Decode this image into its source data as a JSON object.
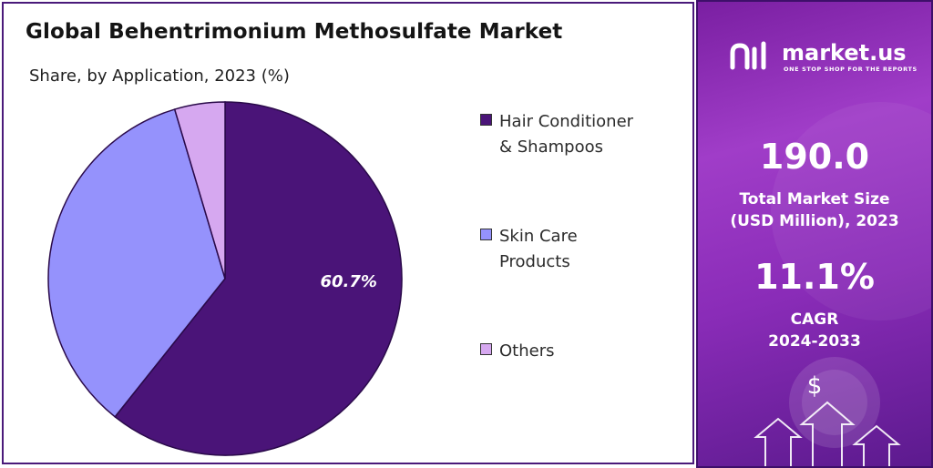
{
  "chart": {
    "title": "Global Behentrimonium Methosulfate Market",
    "subtitle": "Share, by Application, 2023 (%)"
  },
  "chart_data": {
    "type": "pie",
    "title": "Global Behentrimonium Methosulfate Market",
    "subtitle": "Share, by Application, 2023 (%)",
    "categories": [
      "Hair Conditioner & Shampoos",
      "Skin Care Products",
      "Others"
    ],
    "values": [
      60.7,
      34.7,
      4.6
    ],
    "colors": [
      "#4a1478",
      "#9592fc",
      "#d6a8f0"
    ],
    "data_labels": [
      "60.7%",
      "",
      ""
    ],
    "legend_position": "right"
  },
  "legend": {
    "items": [
      {
        "line1": "Hair Conditioner",
        "line2": "& Shampoos",
        "color": "#4a1478"
      },
      {
        "line1": "Skin Care",
        "line2": "Products",
        "color": "#9592fc"
      },
      {
        "line1": "Others",
        "line2": "",
        "color": "#d6a8f0"
      }
    ]
  },
  "brand": {
    "name": "market.us",
    "tagline": "ONE STOP SHOP FOR THE REPORTS"
  },
  "stats": {
    "market_size_value": "190.0",
    "market_size_label_1": "Total Market Size",
    "market_size_label_2": "(USD Million), 2023",
    "cagr_value": "11.1%",
    "cagr_label_1": "CAGR",
    "cagr_label_2": "2024-2033"
  },
  "icons": {
    "dollar": "$"
  }
}
